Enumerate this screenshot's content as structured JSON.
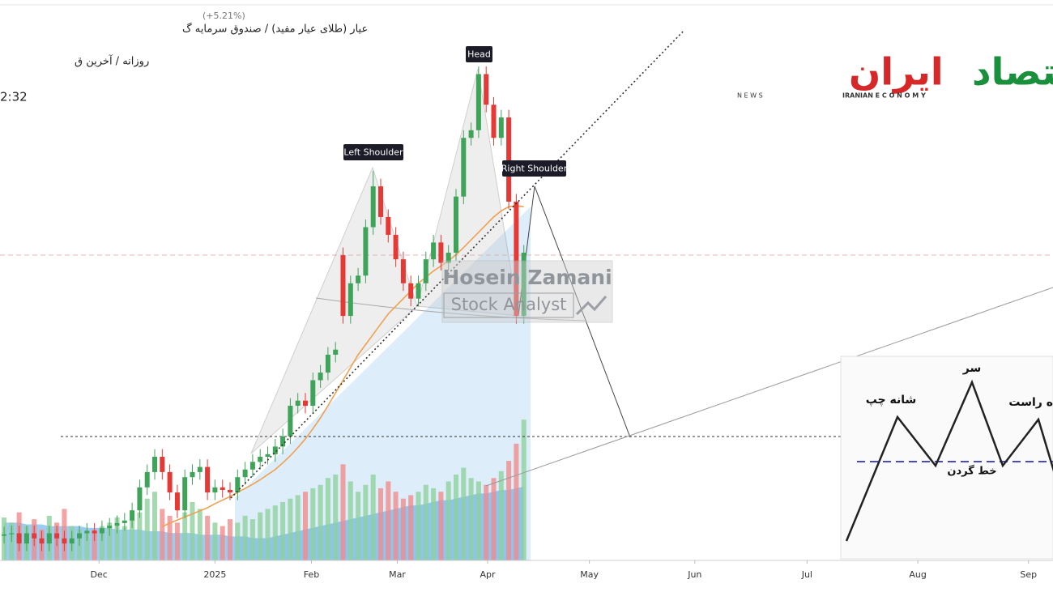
{
  "chart_data": {
    "type": "candlestick",
    "header": {
      "line1": "عیار (طلای عیار مفید) / صندوق سرمایه گ",
      "line2": "روزانه / آخرین ق",
      "time": "2:32",
      "change": "(+5.21%)"
    },
    "annotations": {
      "head": "Head",
      "left_shoulder": "Left Shoulder",
      "right_shoulder": "Right Shoulder"
    },
    "watermark": {
      "name": "Hosein Zamani",
      "role": "Stock Analyst"
    },
    "xlim": [
      -0.54,
      139.25
    ],
    "xticks": [
      {
        "value": 12.6,
        "label": "Dec"
      },
      {
        "value": 28,
        "label": "2025"
      },
      {
        "value": 40.8,
        "label": "Feb"
      },
      {
        "value": 52.2,
        "label": "Mar"
      },
      {
        "value": 64.2,
        "label": "Apr"
      },
      {
        "value": 77.7,
        "label": "May"
      },
      {
        "value": 91.7,
        "label": "Jun"
      },
      {
        "value": 106.6,
        "label": "Jul"
      },
      {
        "value": 121.3,
        "label": "Aug"
      },
      {
        "value": 136,
        "label": "Sep"
      }
    ],
    "ylim": [
      0,
      100
    ],
    "y2lim": [
      0,
      100
    ],
    "up_color": "#3fa35a",
    "down_color": "#e53935",
    "volume_up_color": "#8fd19e",
    "volume_down_color": "#f08c8c",
    "open": [
      4.5,
      4.8,
      5,
      3,
      5,
      4,
      3,
      5,
      4,
      3,
      4,
      5,
      5.5,
      5,
      6,
      6.5,
      7,
      7.5,
      9.5,
      14,
      17,
      20,
      17,
      13,
      9.5,
      16,
      17,
      18,
      13,
      14,
      13.5,
      13,
      16,
      17.5,
      19,
      20,
      20.5,
      22,
      24,
      30,
      31,
      30,
      35,
      36.5,
      40,
      59.5,
      47.6,
      54,
      55.5,
      65,
      73,
      67,
      63.5,
      58.7,
      54,
      51,
      54,
      58.7,
      62,
      58,
      60,
      71,
      82.5,
      84,
      95,
      89,
      82.5,
      86.5,
      70,
      47.6
    ],
    "high": [
      6.3,
      6.5,
      6.5,
      6.5,
      6.5,
      5.5,
      6.5,
      6.5,
      5.5,
      5.5,
      6.5,
      7,
      7,
      7.5,
      8,
      8.5,
      9,
      11,
      15.5,
      18.5,
      21.5,
      21.5,
      18.5,
      14.5,
      17.5,
      18.5,
      19.5,
      19.5,
      15.5,
      15.5,
      15,
      17.5,
      19,
      20.5,
      21.5,
      22,
      23.5,
      25.5,
      31.5,
      32.5,
      32.5,
      36.5,
      38,
      41.5,
      42.5,
      61,
      55.5,
      57,
      66.5,
      76,
      74.5,
      68.5,
      65,
      60.2,
      55.5,
      55.5,
      60.2,
      63.5,
      63.5,
      61.5,
      72.5,
      84,
      85.5,
      96.5,
      96.5,
      90.5,
      88,
      88,
      71.5,
      61.5
    ],
    "low": [
      3,
      3.3,
      1.5,
      1.5,
      2.5,
      1.5,
      1.5,
      2.5,
      1.5,
      1.5,
      2.5,
      3.5,
      3.5,
      3.5,
      4.5,
      5,
      5.5,
      6,
      8,
      12.5,
      15.5,
      15.5,
      11.5,
      8,
      8,
      14.5,
      15.5,
      11.5,
      11.5,
      12,
      11.5,
      11.5,
      14.5,
      16,
      17.5,
      18.5,
      19,
      20.5,
      22.5,
      28.5,
      28.5,
      28.5,
      33.5,
      35,
      38.5,
      46.1,
      46.1,
      52.5,
      54,
      63.5,
      65.5,
      62,
      57.2,
      52.5,
      49.5,
      49.5,
      52.5,
      57.2,
      56.5,
      56.5,
      58.5,
      69.5,
      81,
      82.5,
      87.5,
      81,
      81,
      68.5,
      46.1,
      46.1
    ],
    "close": [
      4.8,
      5,
      3,
      5,
      4,
      3,
      5,
      4,
      3,
      4,
      5,
      5.5,
      5,
      6,
      6.5,
      7,
      7.5,
      9.5,
      14,
      17,
      20,
      17,
      13,
      9.5,
      16,
      17,
      18,
      13,
      14,
      13.5,
      13,
      16,
      17.5,
      19,
      20,
      20.5,
      22,
      24,
      30,
      31,
      30,
      35,
      36.5,
      40,
      41,
      47.6,
      54,
      55.5,
      65,
      73,
      67,
      63.5,
      58.7,
      54,
      51,
      54,
      58.7,
      62,
      58,
      60,
      71,
      82.5,
      84,
      95,
      89,
      82.5,
      86.5,
      70,
      47.6,
      60
    ],
    "volume": [
      25,
      22,
      28,
      20,
      24,
      18,
      26,
      22,
      30,
      20,
      18,
      16,
      18,
      20,
      22,
      25,
      20,
      24,
      28,
      36,
      40,
      30,
      26,
      22,
      28,
      34,
      30,
      26,
      22,
      20,
      24,
      22,
      26,
      24,
      28,
      30,
      32,
      34,
      36,
      38,
      40,
      42,
      44,
      48,
      50,
      56,
      46,
      40,
      44,
      50,
      42,
      46,
      40,
      36,
      38,
      40,
      44,
      42,
      40,
      46,
      50,
      54,
      48,
      46,
      44,
      48,
      52,
      58,
      68,
      82
    ],
    "ma": {
      "color": "#f0a050",
      "values": [
        null,
        null,
        null,
        null,
        null,
        null,
        null,
        null,
        null,
        null,
        null,
        null,
        null,
        null,
        null,
        null,
        null,
        null,
        null,
        null,
        null,
        6.3,
        7,
        7.6,
        8.2,
        8.8,
        9.4,
        10,
        10.8,
        11.5,
        12.2,
        13,
        13.8,
        14.6,
        15.5,
        16.5,
        17.5,
        18.8,
        20.2,
        21.8,
        23.5,
        25.5,
        27.6,
        30,
        32.5,
        35,
        37.5,
        40,
        42,
        44,
        46,
        48,
        49.5,
        51,
        52.5,
        54,
        55.2,
        56.4,
        57.4,
        58.4,
        59.6,
        61,
        62.5,
        64,
        65.5,
        67,
        68.2,
        69,
        69.2,
        69
      ]
    },
    "volume_ma": {
      "color": "#4aa3e8",
      "axis": "y2",
      "values": [
        22,
        22,
        22,
        21,
        21,
        21,
        20,
        20,
        20,
        20,
        20,
        19,
        19,
        19,
        19,
        18,
        18,
        18,
        18,
        17,
        17,
        17,
        16,
        16,
        16,
        16,
        15,
        15,
        15,
        15,
        14,
        14,
        14,
        13,
        13,
        13,
        14,
        15,
        16,
        17,
        18,
        19,
        20,
        21,
        22,
        23,
        24,
        25,
        26,
        27,
        28,
        29,
        30,
        31,
        32,
        32,
        33,
        34,
        35,
        35,
        36,
        37,
        38,
        39,
        39,
        40,
        41,
        41,
        42,
        43
      ]
    }
  },
  "logo": {
    "word1": "اقتصاد",
    "word2": "ایران",
    "news": "N E W S",
    "tag": "IRANIAN E C O N O M Y"
  },
  "inset": {
    "head": "سر",
    "left_shoulder": "شانه چپ",
    "right_shoulder": "ه راست",
    "neckline": "خط گردن"
  }
}
